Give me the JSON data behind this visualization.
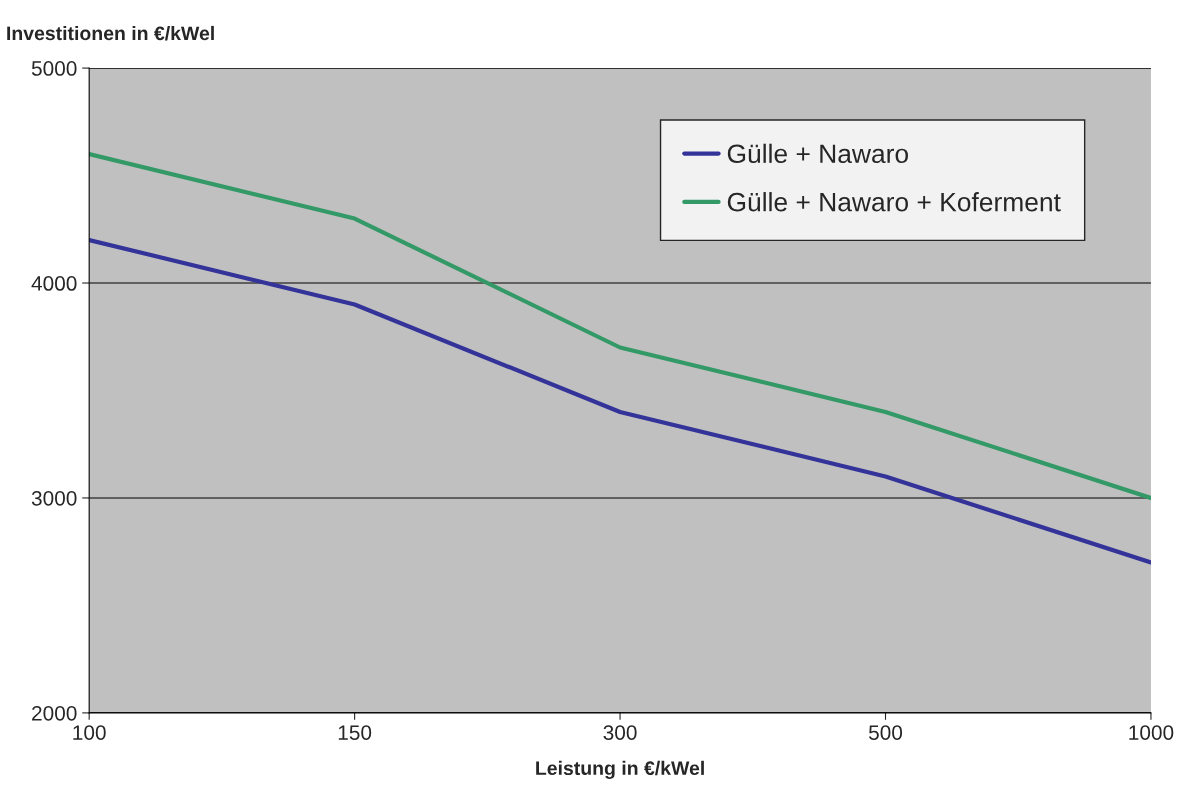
{
  "chart_data": {
    "type": "line",
    "ylabel": "Investitionen in €/kWel",
    "xlabel": "Leistung in €/kWel",
    "categories": [
      "100",
      "150",
      "300",
      "500",
      "1000"
    ],
    "series": [
      {
        "name": "Gülle + Nawaro",
        "color": "#333399",
        "values": [
          4200,
          3900,
          3400,
          3100,
          2700
        ]
      },
      {
        "name": "Gülle + Nawaro + Koferment",
        "color": "#339966",
        "values": [
          4600,
          4300,
          3700,
          3400,
          3000
        ]
      }
    ],
    "ylim": [
      2000,
      5000
    ],
    "yticks": [
      2000,
      3000,
      4000,
      5000
    ],
    "grid": "y",
    "legend": "top right",
    "marker": "none",
    "line_style": "solid"
  }
}
